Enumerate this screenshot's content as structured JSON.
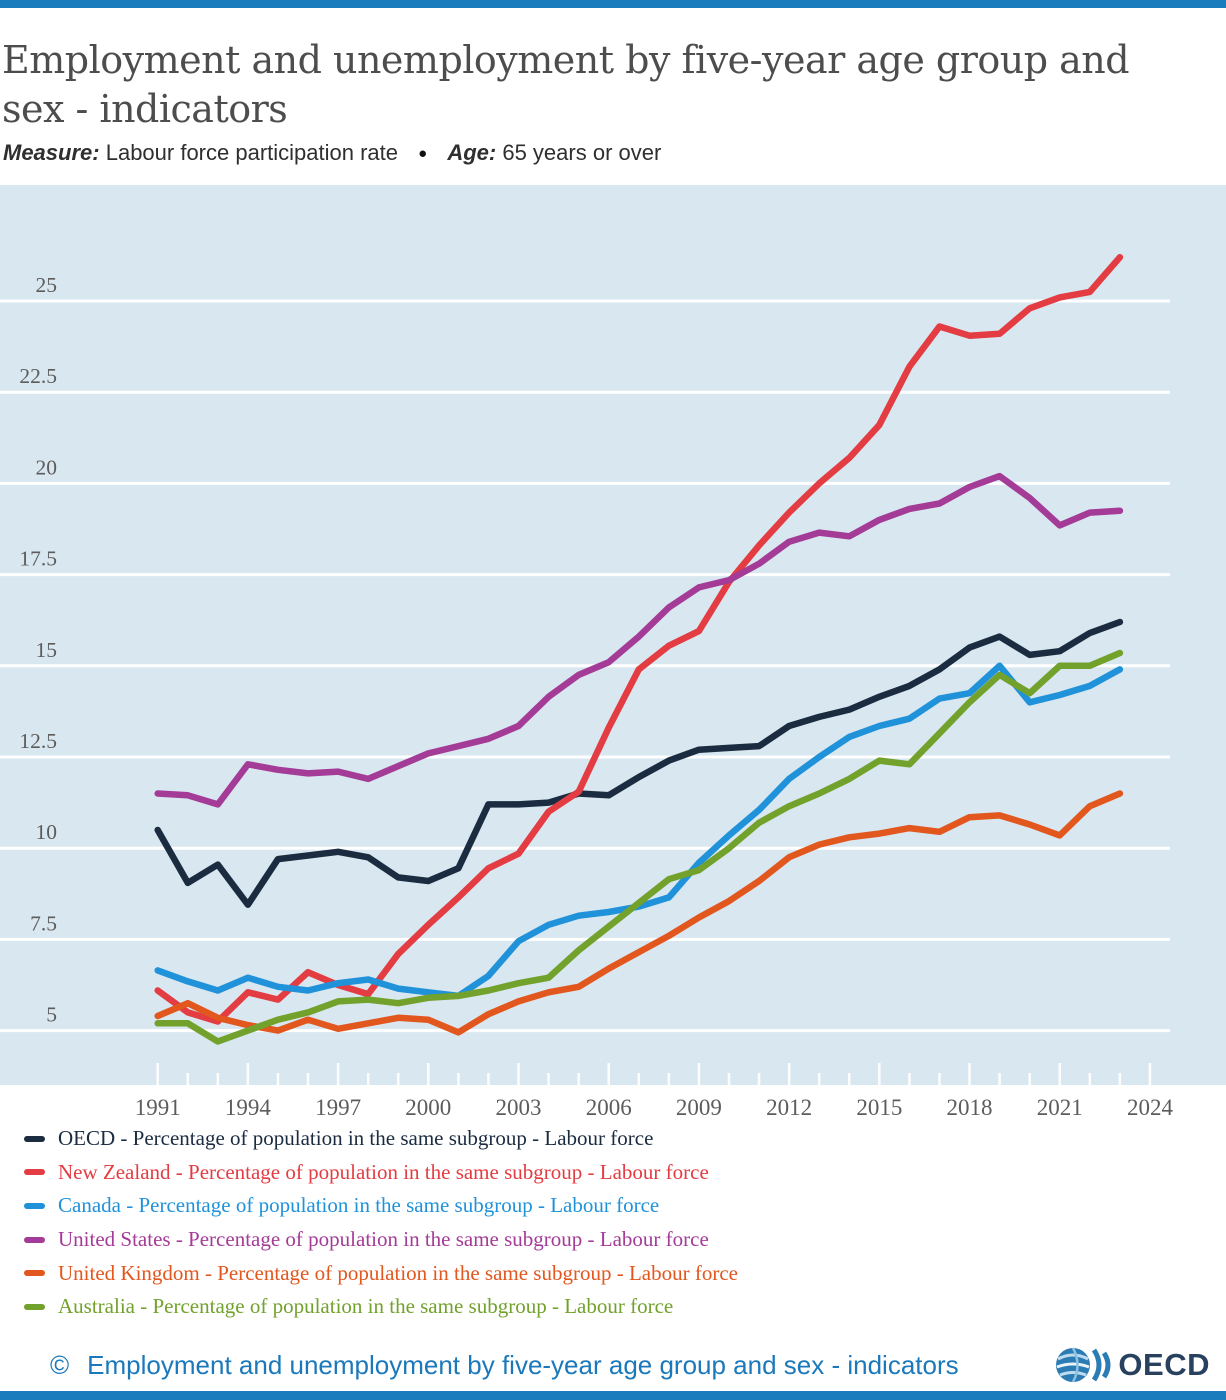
{
  "theme": {
    "bar_color": "#1a7cbd",
    "plot_background": "#d9e7f0",
    "gridline_color": "#ffffff",
    "axis_text_color": "#5c5c5c",
    "title_color": "#4d4d4d",
    "footer_color": "#1b79bb"
  },
  "header": {
    "title": "Employment and unemployment by five-year age group and sex - indicators",
    "measure_label": "Measure:",
    "measure_value": "Labour force participation rate",
    "separator_dot": "●",
    "age_label": "Age:",
    "age_value": "65 years or over"
  },
  "chart_data": {
    "type": "line",
    "title": "",
    "xlabel": "",
    "ylabel": "",
    "grid": true,
    "background": "#d9e7f0",
    "ylim": [
      3.3,
      28.2
    ],
    "yticks": [
      5,
      7.5,
      10,
      12.5,
      15,
      17.5,
      20,
      22.5,
      25
    ],
    "x_axis": {
      "first_year": 1991,
      "last_tick_year": 2024,
      "label_every": 3
    },
    "x": [
      1991,
      1992,
      1993,
      1994,
      1995,
      1996,
      1997,
      1998,
      1999,
      2000,
      2001,
      2002,
      2003,
      2004,
      2005,
      2006,
      2007,
      2008,
      2009,
      2010,
      2011,
      2012,
      2013,
      2014,
      2015,
      2016,
      2017,
      2018,
      2019,
      2020,
      2021,
      2022,
      2023
    ],
    "series": [
      {
        "name": "OECD",
        "color": "#1b2c40",
        "values": [
          10.5,
          9.05,
          9.55,
          8.45,
          9.7,
          9.8,
          9.9,
          9.75,
          9.2,
          9.1,
          9.45,
          11.2,
          11.2,
          11.25,
          11.5,
          11.45,
          11.95,
          12.4,
          12.7,
          12.75,
          12.8,
          13.35,
          13.6,
          13.8,
          14.15,
          14.45,
          14.9,
          15.5,
          15.8,
          15.3,
          15.4,
          15.9,
          16.2
        ]
      },
      {
        "name": "New Zealand",
        "color": "#e33c42",
        "values": [
          6.1,
          5.5,
          5.25,
          6.05,
          5.85,
          6.6,
          6.25,
          6.0,
          7.1,
          7.9,
          8.65,
          9.45,
          9.85,
          11.0,
          11.55,
          13.3,
          14.9,
          15.55,
          15.95,
          17.3,
          18.3,
          19.2,
          20.0,
          20.7,
          21.6,
          23.2,
          24.3,
          24.05,
          24.1,
          24.8,
          25.1,
          25.25,
          26.2
        ]
      },
      {
        "name": "Canada",
        "color": "#2092da",
        "values": [
          6.65,
          6.35,
          6.1,
          6.45,
          6.2,
          6.1,
          6.3,
          6.4,
          6.15,
          6.05,
          5.95,
          6.5,
          7.45,
          7.9,
          8.15,
          8.25,
          8.4,
          8.65,
          9.6,
          10.35,
          11.05,
          11.9,
          12.5,
          13.05,
          13.35,
          13.55,
          14.1,
          14.25,
          15.0,
          14.0,
          14.2,
          14.45,
          14.9
        ]
      },
      {
        "name": "United States",
        "color": "#a43b97",
        "values": [
          11.5,
          11.45,
          11.2,
          12.3,
          12.15,
          12.05,
          12.1,
          11.9,
          12.25,
          12.6,
          12.8,
          13.0,
          13.35,
          14.15,
          14.75,
          15.1,
          15.8,
          16.6,
          17.15,
          17.35,
          17.8,
          18.4,
          18.65,
          18.55,
          19.0,
          19.3,
          19.45,
          19.9,
          20.2,
          19.6,
          18.85,
          19.2,
          19.25
        ]
      },
      {
        "name": "United Kingdom",
        "color": "#e2571e",
        "values": [
          5.4,
          5.75,
          5.35,
          5.15,
          5.0,
          5.3,
          5.05,
          5.2,
          5.35,
          5.3,
          4.95,
          5.45,
          5.8,
          6.05,
          6.2,
          6.7,
          7.15,
          7.6,
          8.1,
          8.55,
          9.1,
          9.75,
          10.1,
          10.3,
          10.4,
          10.55,
          10.45,
          10.85,
          10.9,
          10.65,
          10.35,
          11.15,
          11.5
        ]
      },
      {
        "name": "Australia",
        "color": "#72a12c",
        "values": [
          5.2,
          5.2,
          4.7,
          5.0,
          5.3,
          5.5,
          5.8,
          5.85,
          5.75,
          5.9,
          5.95,
          6.1,
          6.3,
          6.45,
          7.2,
          7.85,
          8.5,
          9.15,
          9.4,
          10.0,
          10.7,
          11.15,
          11.5,
          11.9,
          12.4,
          12.3,
          13.15,
          14.0,
          14.75,
          14.25,
          15.0,
          15.0,
          15.35
        ]
      }
    ],
    "legend_position": "bottom-left"
  },
  "legend": {
    "items": [
      {
        "label": "OECD - Percentage of population in the same subgroup - Labour force",
        "color": "#1b2c40"
      },
      {
        "label": "New Zealand - Percentage of population in the same subgroup - Labour force",
        "color": "#e33c42"
      },
      {
        "label": "Canada - Percentage of population in the same subgroup - Labour force",
        "color": "#2092da"
      },
      {
        "label": "United States - Percentage of population in the same subgroup - Labour force",
        "color": "#a43b97"
      },
      {
        "label": "United Kingdom - Percentage of population in the same subgroup - Labour force",
        "color": "#e2571e"
      },
      {
        "label": "Australia - Percentage of population in the same subgroup - Labour force",
        "color": "#72a12c"
      }
    ]
  },
  "footer": {
    "copyright": "©",
    "text": "Employment and unemployment by five-year age group and sex - indicators",
    "logo_text": "OECD"
  }
}
